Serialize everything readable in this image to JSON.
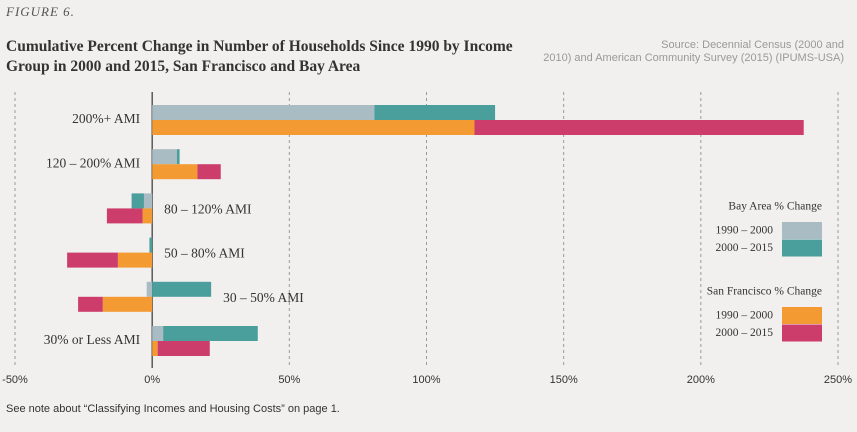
{
  "chart_data": {
    "type": "grouped_stacked_barh",
    "figure_label": "FIGURE 6.",
    "title": "Cumulative Percent Change in Number of Households Since 1990 by Income Group in 2000 and 2015, San Francisco and Bay Area",
    "source": "Source: Decennial Census (2000 and 2010) and American Community Survey (2015) (IPUMS-USA)",
    "footnote": "See note about “Classifying Incomes and Housing Costs” on page 1.",
    "categories": [
      "200%+ AMI",
      "120 – 200% AMI",
      "80 – 120% AMI",
      "50 – 80% AMI",
      "30 – 50% AMI",
      "30% or Less AMI"
    ],
    "groups": [
      {
        "name": "Bay Area % Change",
        "series": [
          {
            "name": "1990 – 2000",
            "color": "#a9bcc4",
            "values": [
              81,
              9,
              -3,
              0,
              -2,
              4
            ]
          },
          {
            "name": "2000 – 2015",
            "color": "#4a9e9b",
            "values": [
              44,
              1,
              -4.5,
              -1,
              21.5,
              34.5
            ]
          }
        ]
      },
      {
        "name": "San Francisco % Change",
        "series": [
          {
            "name": "1990 – 2000",
            "color": "#f39a33",
            "values": [
              117.5,
              16.5,
              -3.5,
              -12.5,
              -18,
              2
            ]
          },
          {
            "name": "2000 – 2015",
            "color": "#cc3d6b",
            "values": [
              120,
              8.5,
              -13,
              -18.5,
              -9,
              19
            ]
          }
        ]
      }
    ],
    "xlim": [
      -50,
      250
    ],
    "xticks": [
      {
        "value": -50,
        "label": "-50%"
      },
      {
        "value": 0,
        "label": "0%"
      },
      {
        "value": 50,
        "label": "50%"
      },
      {
        "value": 100,
        "label": "100%"
      },
      {
        "value": 150,
        "label": "150%"
      },
      {
        "value": 200,
        "label": "200%"
      },
      {
        "value": 250,
        "label": "250%"
      }
    ],
    "grid": true
  }
}
